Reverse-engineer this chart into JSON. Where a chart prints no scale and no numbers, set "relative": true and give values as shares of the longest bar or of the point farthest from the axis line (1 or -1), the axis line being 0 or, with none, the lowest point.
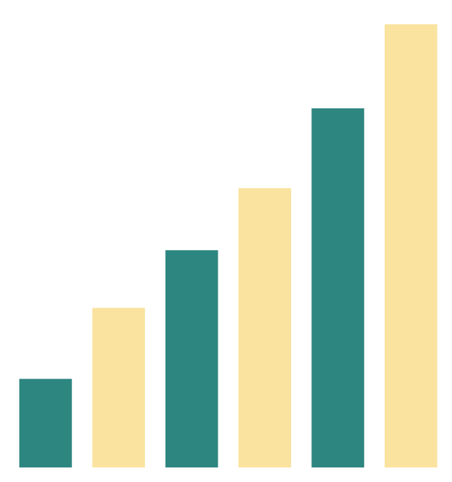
{
  "chart_data": {
    "type": "bar",
    "relative": true,
    "categories": [
      null,
      null,
      null,
      null,
      null,
      null
    ],
    "values": [
      0.2,
      0.36,
      0.49,
      0.63,
      0.81,
      1
    ],
    "colors": [
      "#2e8680",
      "#fae39f",
      "#2e8680",
      "#fae39f",
      "#2e8680",
      "#fae39f"
    ],
    "grid": false,
    "legend": false,
    "tick_labels": false
  }
}
